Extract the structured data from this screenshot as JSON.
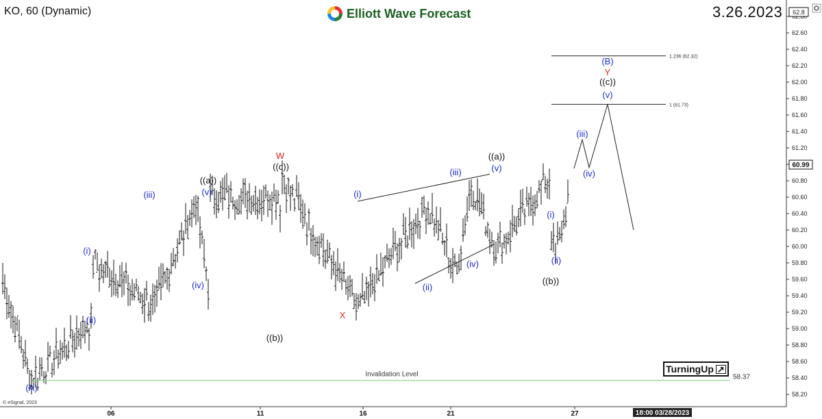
{
  "header": {
    "symbol": "KO, 60 (Dynamic)",
    "brand": "Elliott Wave Forecast",
    "date": "3.26.2023"
  },
  "badge": {
    "label": "TurningUp",
    "arrow_icon": "arrow-up-right-icon"
  },
  "footer": {
    "copyright": "© eSignal, 2023",
    "time_label": "18:00 03/28/2023"
  },
  "chart_data": {
    "type": "candlestick",
    "y_axis": {
      "ylim": [
        58.1,
        62.95
      ],
      "ticks": [
        "58.20",
        "58.40",
        "58.60",
        "58.80",
        "59.00",
        "59.20",
        "59.40",
        "59.60",
        "59.80",
        "60.00",
        "60.20",
        "60.40",
        "60.60",
        "60.80",
        "61.00",
        "61.20",
        "61.40",
        "61.60",
        "61.80",
        "62.00",
        "62.20",
        "62.40",
        "62.60",
        "62.80"
      ],
      "current_price": "60.99",
      "top_price": "62.8"
    },
    "x_axis": {
      "ticks": [
        "06",
        "11",
        "16",
        "21",
        "27"
      ]
    },
    "fib_levels": [
      {
        "label": "1.236 (62.32)",
        "value": 62.32
      },
      {
        "label": "1 (61.73)",
        "value": 61.73
      }
    ],
    "invalidation": {
      "label": "Invalidation Level",
      "value": 58.37,
      "value_label": "58.37",
      "color": "#8fd98f"
    },
    "colors": {
      "blue": "#1f2bd6",
      "black": "#111111",
      "red": "#e3211c"
    },
    "wave_labels": [
      {
        "text": "(A)",
        "color": "blue"
      },
      {
        "text": "(i)",
        "color": "blue"
      },
      {
        "text": "(ii)",
        "color": "blue"
      },
      {
        "text": "(iii)",
        "color": "blue"
      },
      {
        "text": "(iv)",
        "color": "blue"
      },
      {
        "text": "(v)",
        "color": "blue"
      },
      {
        "text": "((a))",
        "color": "black"
      },
      {
        "text": "((b))",
        "color": "black"
      },
      {
        "text": "((c))",
        "color": "black"
      },
      {
        "text": "W",
        "color": "red"
      },
      {
        "text": "X",
        "color": "red"
      },
      {
        "text": "(i)",
        "color": "blue"
      },
      {
        "text": "(ii)",
        "color": "blue"
      },
      {
        "text": "(iii)",
        "color": "blue"
      },
      {
        "text": "(iv)",
        "color": "blue"
      },
      {
        "text": "(v)",
        "color": "blue"
      },
      {
        "text": "((a))",
        "color": "black"
      },
      {
        "text": "((b))",
        "color": "black"
      },
      {
        "text": "(i)",
        "color": "blue"
      },
      {
        "text": "(ii)",
        "color": "blue"
      },
      {
        "text": "(iii)",
        "color": "blue"
      },
      {
        "text": "(iv)",
        "color": "blue"
      },
      {
        "text": "(v)",
        "color": "blue"
      },
      {
        "text": "((c))",
        "color": "black"
      },
      {
        "text": "Y",
        "color": "red"
      },
      {
        "text": "(B)",
        "color": "blue"
      }
    ],
    "key_prices": [
      59.58,
      58.37,
      59.1,
      59.85,
      59.28,
      60.55,
      59.52,
      60.6,
      60.6,
      59.12,
      60.85,
      59.55,
      59.25,
      60.52,
      59.68,
      60.75,
      59.95,
      60.85,
      59.75,
      60.27,
      59.85,
      61.3,
      60.96,
      61.73,
      60.2
    ]
  }
}
